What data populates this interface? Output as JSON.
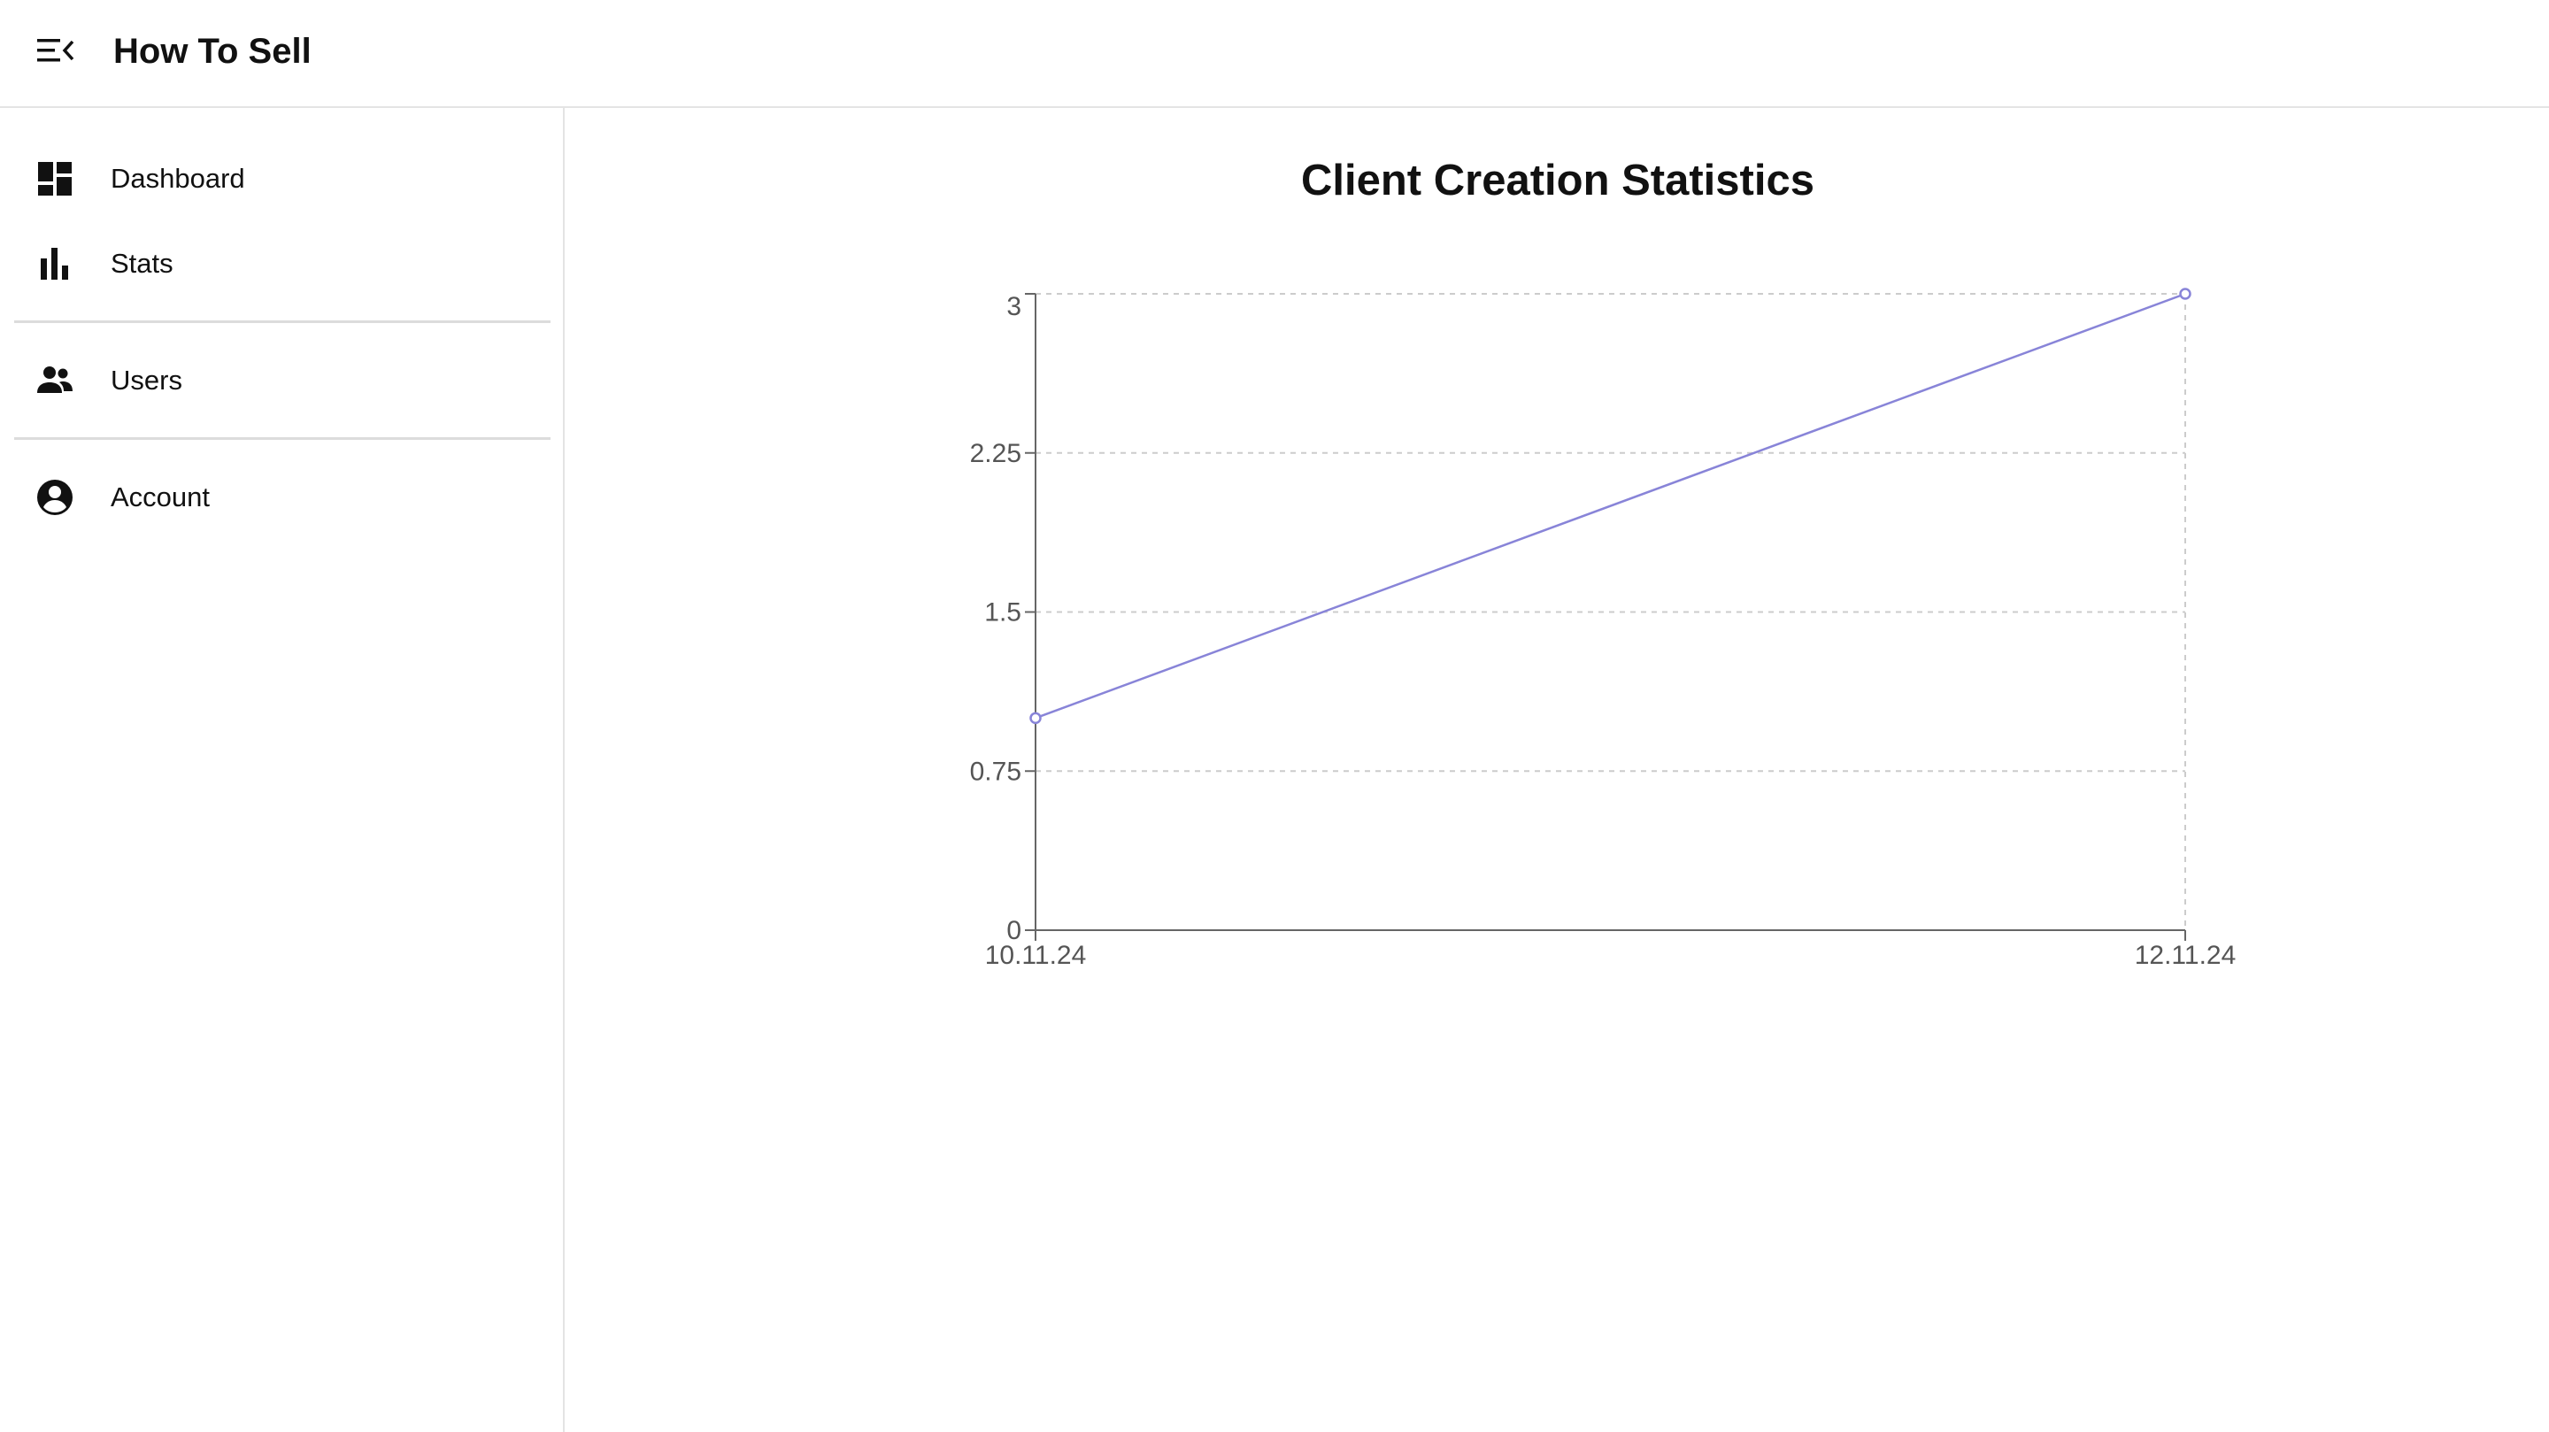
{
  "app": {
    "title": "How To Sell"
  },
  "sidebar": {
    "items": [
      {
        "label": "Dashboard",
        "icon": "dashboard-icon"
      },
      {
        "label": "Stats",
        "icon": "bar-chart-icon"
      },
      {
        "label": "Users",
        "icon": "users-icon"
      },
      {
        "label": "Account",
        "icon": "account-circle-icon"
      }
    ]
  },
  "colors": {
    "line": "#8884d8",
    "grid": "#cccccc",
    "axis": "#666666"
  },
  "chart_data": {
    "type": "line",
    "title": "Client Creation Statistics",
    "x": [
      "10.11.24",
      "12.11.24"
    ],
    "series": [
      {
        "values": [
          1,
          3
        ]
      }
    ],
    "yticks": [
      "0",
      "0.75",
      "1.5",
      "2.25",
      "3"
    ],
    "ylim": [
      0,
      3
    ],
    "grid": true,
    "xlabel": "",
    "ylabel": ""
  }
}
